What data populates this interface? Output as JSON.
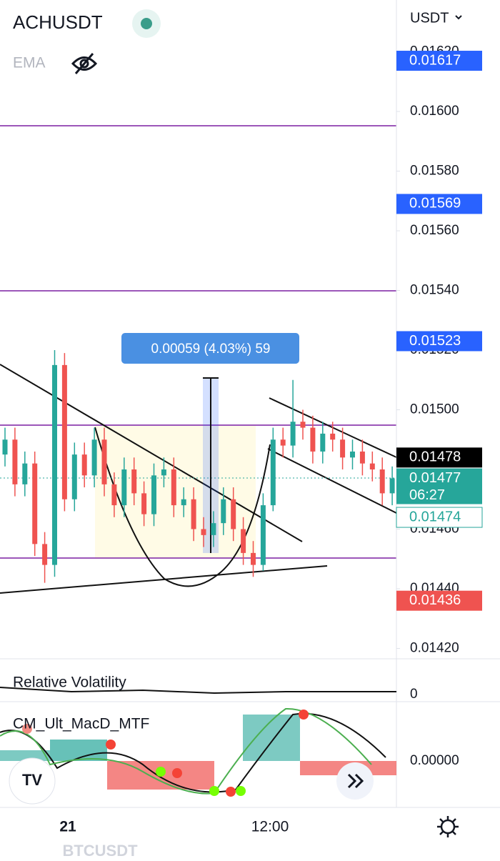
{
  "header": {
    "symbol": "ACHUSDT",
    "indicator": "EMA",
    "currency": "USDT"
  },
  "price_axis": {
    "ticks": [
      {
        "value": 0.0162,
        "label": "0.01620"
      },
      {
        "value": 0.016,
        "label": "0.01600"
      },
      {
        "value": 0.0158,
        "label": "0.01580"
      },
      {
        "value": 0.0156,
        "label": "0.01560"
      },
      {
        "value": 0.0154,
        "label": "0.01540"
      },
      {
        "value": 0.0152,
        "label": "0.01520"
      },
      {
        "value": 0.015,
        "label": "0.01500"
      },
      {
        "value": 0.0146,
        "label": "0.01460"
      },
      {
        "value": 0.0144,
        "label": "0.01440"
      },
      {
        "value": 0.0142,
        "label": "0.01420"
      }
    ]
  },
  "badges": [
    {
      "value": 0.01617,
      "color": "#2962ff"
    },
    {
      "value": 0.01569,
      "color": "#2962ff"
    },
    {
      "value": 0.01523,
      "color": "#2962ff"
    },
    {
      "value": 0.01478,
      "color": "#000000"
    },
    {
      "value": 0.01477,
      "color": "#26a69a",
      "time": "06:27"
    },
    {
      "value": 0.01474,
      "color": "#ffffff"
    },
    {
      "value": 0.01436,
      "color": "#ef5350"
    }
  ],
  "measure_label": "0.00059 (4.03%) 59",
  "candles": {
    "open": [
      0.01485,
      0.0149,
      0.01475,
      0.01482,
      0.01455,
      0.01448,
      0.01515,
      0.0147,
      0.01485,
      0.01478,
      0.0149,
      0.01475,
      0.01468,
      0.0148,
      0.01472,
      0.01465,
      0.01478,
      0.0148,
      0.01468,
      0.0147,
      0.0146,
      0.01458,
      0.01462,
      0.0147,
      0.0146,
      0.01452,
      0.01448,
      0.01468,
      0.0149,
      0.01488,
      0.01496,
      0.01494,
      0.01486,
      0.01492,
      0.0149,
      0.01484,
      0.01486,
      0.01482,
      0.0148,
      0.01472
    ],
    "high": [
      0.01494,
      0.01494,
      0.01486,
      0.01486,
      0.01459,
      0.0152,
      0.01519,
      0.01489,
      0.01489,
      0.01494,
      0.01494,
      0.01479,
      0.01484,
      0.01484,
      0.01476,
      0.01482,
      0.01484,
      0.01484,
      0.01474,
      0.01474,
      0.01464,
      0.01466,
      0.01474,
      0.01474,
      0.01464,
      0.01456,
      0.01472,
      0.01494,
      0.01494,
      0.0151,
      0.015,
      0.01498,
      0.01496,
      0.01496,
      0.01494,
      0.0149,
      0.0149,
      0.01486,
      0.01484,
      0.01481
    ],
    "low": [
      0.01481,
      0.01471,
      0.01471,
      0.01451,
      0.01442,
      0.01444,
      0.01466,
      0.01466,
      0.01474,
      0.01474,
      0.01471,
      0.01464,
      0.01464,
      0.01468,
      0.01461,
      0.01461,
      0.01474,
      0.01464,
      0.01464,
      0.01456,
      0.01454,
      0.01454,
      0.01458,
      0.01456,
      0.01448,
      0.01444,
      0.01446,
      0.01466,
      0.01484,
      0.01484,
      0.0149,
      0.01482,
      0.01482,
      0.01486,
      0.0148,
      0.0148,
      0.01478,
      0.01476,
      0.01468,
      0.01468
    ],
    "close": [
      0.0149,
      0.01475,
      0.01482,
      0.01455,
      0.01448,
      0.01515,
      0.0147,
      0.01485,
      0.01478,
      0.0149,
      0.01475,
      0.01468,
      0.0148,
      0.01472,
      0.01465,
      0.01478,
      0.0148,
      0.01468,
      0.0147,
      0.0146,
      0.01458,
      0.01462,
      0.0147,
      0.0146,
      0.01452,
      0.01448,
      0.01468,
      0.0149,
      0.01488,
      0.01496,
      0.01494,
      0.01486,
      0.01492,
      0.0149,
      0.01484,
      0.01486,
      0.01482,
      0.0148,
      0.01472,
      0.01477
    ]
  },
  "panes": [
    {
      "label": "Relative Volatility",
      "axis_label": "0"
    },
    {
      "label": "CM_Ult_MacD_MTF",
      "axis_label": "0.00000"
    }
  ],
  "time_axis": [
    "21",
    "12:00"
  ],
  "watermark": "BTCUSDT"
}
